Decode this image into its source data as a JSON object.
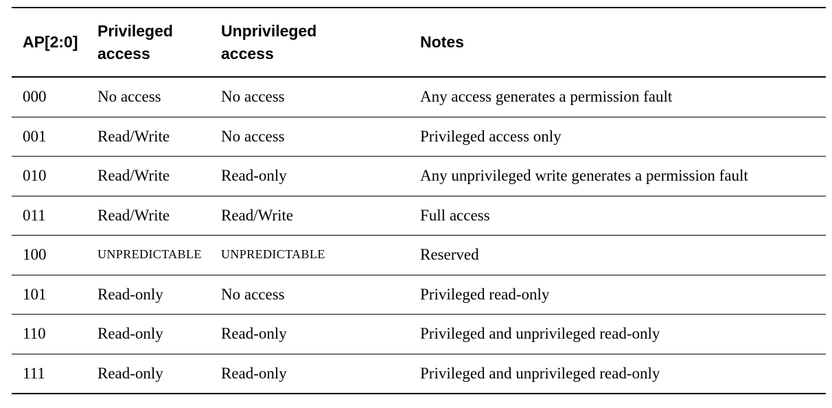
{
  "table": {
    "columns": [
      {
        "label": "AP[2:0]"
      },
      {
        "label": "Privileged\naccess"
      },
      {
        "label": "Unprivileged\naccess"
      },
      {
        "label": "Notes"
      }
    ],
    "rows": [
      [
        "000",
        "No access",
        "No access",
        "Any access generates a permission fault"
      ],
      [
        "001",
        "Read/Write",
        "No access",
        "Privileged access only"
      ],
      [
        "010",
        "Read/Write",
        "Read-only",
        "Any unprivileged write generates a permission fault"
      ],
      [
        "011",
        "Read/Write",
        "Read/Write",
        "Full access"
      ],
      [
        "100",
        "UNPREDICTABLE",
        "UNPREDICTABLE",
        "Reserved"
      ],
      [
        "101",
        "Read-only",
        "No access",
        "Privileged read-only"
      ],
      [
        "110",
        "Read-only",
        "Read-only",
        "Privileged and unprivileged read-only"
      ],
      [
        "111",
        "Read-only",
        "Read-only",
        "Privileged and unprivileged read-only"
      ]
    ],
    "special_value_small_caps": "UNPREDICTABLE"
  }
}
